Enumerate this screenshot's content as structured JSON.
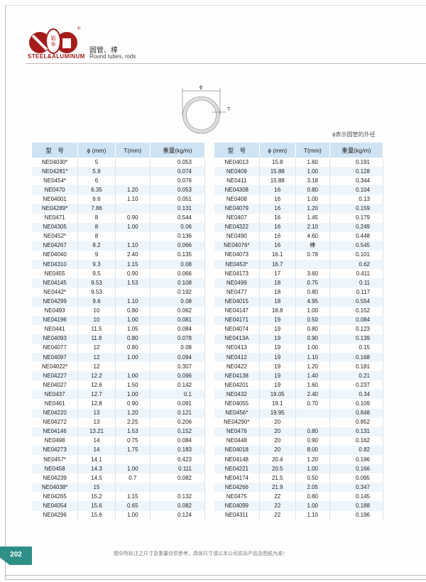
{
  "header": {
    "logo_text": "STEEL&ALUMINUM",
    "title_cn": "圆管、棒",
    "title_en": "Round tubes, rods",
    "brand_color": "#a61b1b"
  },
  "diagram": {
    "phi_label": "ϕ",
    "t_label": "T",
    "note": "ϕ表示圆管的外径"
  },
  "table": {
    "columns": [
      "型　号",
      "ϕ (mm)",
      "T(mm)",
      "重量(kg/m)"
    ],
    "header_color": "#cfe3f3",
    "left_rows": [
      [
        "NE04030*",
        "5",
        "",
        "0.053"
      ],
      [
        "NE04281*",
        "5.9",
        "",
        "0.074"
      ],
      [
        "NE0454*",
        "6",
        "",
        "0.076"
      ],
      [
        "NE0470",
        "6.35",
        "1.20",
        "0.053"
      ],
      [
        "NE04001",
        "6.6",
        "1.10",
        "0.051"
      ],
      [
        "NE04289*",
        "7.86",
        "",
        "0.131"
      ],
      [
        "NE0471",
        "8",
        "0.90",
        "0.544"
      ],
      [
        "NE04305",
        "8",
        "1.00",
        "0.06"
      ],
      [
        "NE0452*",
        "8",
        "",
        "0.136"
      ],
      [
        "NE04267",
        "8.2",
        "1.10",
        "0.066"
      ],
      [
        "NE04040",
        "9",
        "2.40",
        "0.135"
      ],
      [
        "NE04310",
        "9.3",
        "1.15",
        "0.08"
      ],
      [
        "NE0455",
        "9.5",
        "0.90",
        "0.066"
      ],
      [
        "NE04145",
        "9.53",
        "1.53",
        "0.108"
      ],
      [
        "NE0442*",
        "9.53",
        "",
        "0.192"
      ],
      [
        "NE04299",
        "9.6",
        "1.10",
        "0.08"
      ],
      [
        "NE0493",
        "10",
        "0.80",
        "0.062"
      ],
      [
        "NE04196",
        "10",
        "1.00",
        "0.081"
      ],
      [
        "NE0441",
        "11.5",
        "1.05",
        "0.084"
      ],
      [
        "NE04093",
        "11.8",
        "0.80",
        "0.078"
      ],
      [
        "NE04077",
        "12",
        "0.80",
        "0.08"
      ],
      [
        "NE04097",
        "12",
        "1.00",
        "0.094"
      ],
      [
        "NE04022*",
        "12",
        "",
        "0.307"
      ],
      [
        "NE04227",
        "12.2",
        "1.00",
        "0.096"
      ],
      [
        "NE04027",
        "12.6",
        "1.50",
        "0.142"
      ],
      [
        "NE0437",
        "12.7",
        "1.00",
        "0.1"
      ],
      [
        "NE0461",
        "12.8",
        "0.90",
        "0.091"
      ],
      [
        "NE04220",
        "13",
        "1.20",
        "0.121"
      ],
      [
        "NE04272",
        "13",
        "2.25",
        "0.206"
      ],
      [
        "NE04146",
        "13.21",
        "1.53",
        "0.152"
      ],
      [
        "NE0498",
        "14",
        "0.75",
        "0.084"
      ],
      [
        "NE04273",
        "14",
        "1.75",
        "0.183"
      ],
      [
        "NE0457*",
        "14.1",
        "",
        "0.423"
      ],
      [
        "NE0458",
        "14.3",
        "1.00",
        "0.111"
      ],
      [
        "NE04239",
        "14.5",
        "0.7",
        "0.082"
      ],
      [
        "NE04038*",
        "15",
        "",
        ""
      ],
      [
        "NE04265",
        "15.2",
        "1.15",
        "0.132"
      ],
      [
        "NE04054",
        "15.6",
        "0.65",
        "0.082"
      ],
      [
        "NE04296",
        "15.6",
        "1.00",
        "0.124"
      ]
    ],
    "right_rows": [
      [
        "NE04013",
        "15.8",
        "1.60",
        "0.191"
      ],
      [
        "NE0409",
        "15.88",
        "1.00",
        "0.128"
      ],
      [
        "NE0411",
        "15.88",
        "3.18",
        "0.344"
      ],
      [
        "NE04308",
        "16",
        "0.80",
        "0.104"
      ],
      [
        "NE0408",
        "16",
        "1.00",
        "0.13"
      ],
      [
        "NE04079",
        "16",
        "1.20",
        "0.159"
      ],
      [
        "NE0407",
        "16",
        "1.45",
        "0.179"
      ],
      [
        "NE04322",
        "16",
        "2.10",
        "0.249"
      ],
      [
        "NE0490",
        "16",
        "4.60",
        "0.448"
      ],
      [
        "NE04076*",
        "16",
        "棒",
        "0.545"
      ],
      [
        "NE04073",
        "16.1",
        "0.78",
        "0.101"
      ],
      [
        "NE0453*",
        "16.7",
        "",
        "0.62"
      ],
      [
        "NE04173",
        "17",
        "3.60",
        "0.411"
      ],
      [
        "NE0499",
        "18",
        "0.75",
        "0.11"
      ],
      [
        "NE0477",
        "18",
        "0.80",
        "0.117"
      ],
      [
        "NE04015",
        "18",
        "4.95",
        "0.554"
      ],
      [
        "NE04147",
        "18.8",
        "1.00",
        "0.152"
      ],
      [
        "NE04171",
        "19",
        "0.50",
        "0.084"
      ],
      [
        "NE04074",
        "19",
        "0.80",
        "0.123"
      ],
      [
        "NE0413A",
        "19",
        "0.90",
        "0.139"
      ],
      [
        "NE0413",
        "19",
        "1.00",
        "0.15"
      ],
      [
        "NE0412",
        "19",
        "1.10",
        "0.168"
      ],
      [
        "NE0422",
        "19",
        "1.20",
        "0.181"
      ],
      [
        "NE04138",
        "19",
        "1.40",
        "0.21"
      ],
      [
        "NE04201",
        "19",
        "1.60",
        "0.237"
      ],
      [
        "NE0432",
        "19.05",
        "2.40",
        "0.34"
      ],
      [
        "NE04055",
        "19.1",
        "0.70",
        "0.109"
      ],
      [
        "NE0456*",
        "19.95",
        "",
        "0.848"
      ],
      [
        "NE04290*",
        "20",
        "",
        "0.852"
      ],
      [
        "NE0476",
        "20",
        "0.80",
        "0.131"
      ],
      [
        "NE0448",
        "20",
        "0.90",
        "0.162"
      ],
      [
        "NE04018",
        "20",
        "8.00",
        "0.82"
      ],
      [
        "NE04148",
        "20.4",
        "1.20",
        "0.196"
      ],
      [
        "NE04221",
        "20.5",
        "1.00",
        "0.166"
      ],
      [
        "NE04174",
        "21.5",
        "0.50",
        "0.095"
      ],
      [
        "NE04266",
        "21.9",
        "2.05",
        "0.347"
      ],
      [
        "NE0475",
        "22",
        "0.80",
        "0.145"
      ],
      [
        "NE04099",
        "22",
        "1.00",
        "0.188"
      ],
      [
        "NE04311",
        "22",
        "1.10",
        "0.196"
      ]
    ]
  },
  "footer": {
    "page_number": "202",
    "page_color": "#2e8f86",
    "note": "图中所标注之尺寸及重量仅供参考，具体尺寸请以本公司实际产品及图纸为准！"
  }
}
